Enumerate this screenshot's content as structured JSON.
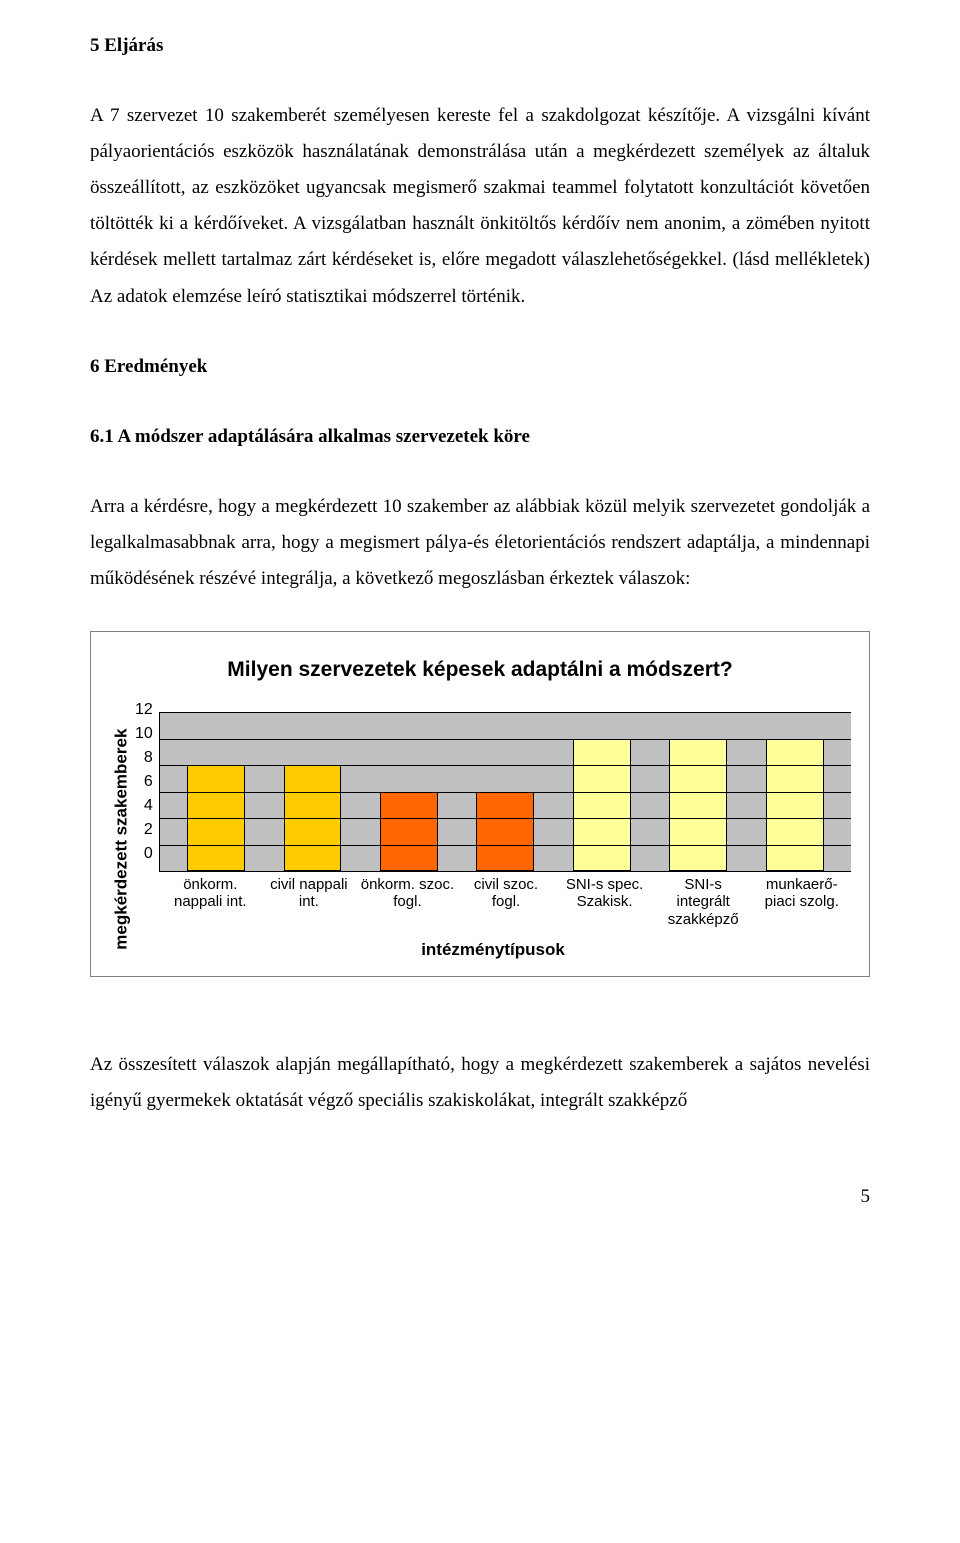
{
  "headings": {
    "h5": "5 Eljárás",
    "h6": "6 Eredmények",
    "h61": "6.1 A módszer adaptálására alkalmas szervezetek köre"
  },
  "paragraphs": {
    "p1": "A 7 szervezet 10 szakemberét személyesen kereste fel a szakdolgozat készítője. A vizsgálni kívánt pályaorientációs eszközök használatának demonstrálása után a megkérdezett személyek az általuk összeállított, az eszközöket ugyancsak megismerő szakmai teammel folytatott konzultációt követően töltötték ki a kérdőíveket. A vizsgálatban használt önkitöltős kérdőív nem anonim, a zömében nyitott kérdések mellett tartalmaz zárt kérdéseket is, előre megadott válaszlehetőségekkel. (lásd mellékletek) Az adatok elemzése leíró statisztikai módszerrel történik.",
    "p2": "Arra a kérdésre, hogy a megkérdezett 10 szakember az alábbiak közül melyik szervezetet gondolják a legalkalmasabbnak arra, hogy a megismert pálya-és életorientációs rendszert adaptálja, a mindennapi működésének részévé integrálja, a következő megoszlásban érkeztek válaszok:",
    "p3": "Az összesített válaszok alapján megállapítható, hogy a megkérdezett szakemberek a sajátos nevelési igényű gyermekek oktatását végző speciális szakiskolákat, integrált szakképző"
  },
  "chart": {
    "title": "Milyen szervezetek képesek adaptálni a módszert?",
    "ylabel": "megkérdezett szakemberek",
    "xlabel": "intézménytípusok",
    "ylim": [
      0,
      12
    ],
    "ytick_step": 2,
    "yticks": [
      "12",
      "10",
      "8",
      "6",
      "4",
      "2",
      "0"
    ],
    "plot_bg": "#c0c0c0",
    "grid_color": "#000000",
    "categories": [
      "önkorm. nappali int.",
      "civil nappali int.",
      "önkorm. szoc. fogl.",
      "civil szoc. fogl.",
      "SNI-s spec. Szakisk.",
      "SNI-s integrált szakképző",
      "munkaerő-piaci szolg."
    ],
    "values": [
      8,
      8,
      6,
      6,
      10,
      10,
      10
    ],
    "bar_colors": [
      "#ffcc00",
      "#ffcc00",
      "#ff6600",
      "#ff6600",
      "#ffff99",
      "#ffff99",
      "#ffff99"
    ]
  },
  "page_number": "5"
}
